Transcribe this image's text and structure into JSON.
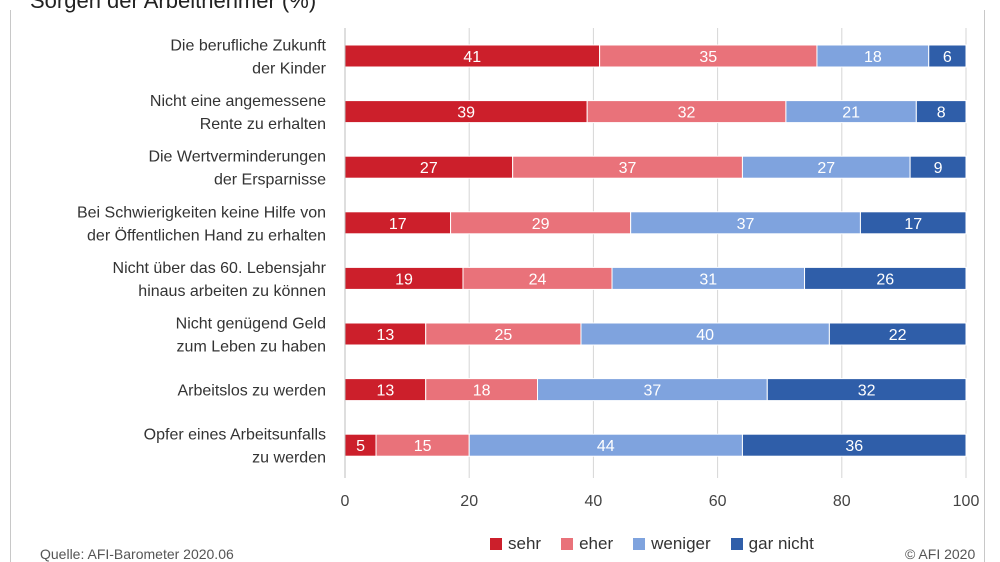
{
  "title": "Sorgen der Arbeitnehmer (%)",
  "source": "Quelle: AFI-Barometer 2020.06",
  "copyright": "© AFI 2020",
  "colors": {
    "sehr": "#cc1f2b",
    "eher": "#e9727a",
    "weniger": "#7fa3de",
    "gar_nicht": "#2f5ea9"
  },
  "chart_data": {
    "type": "bar",
    "orientation": "horizontal",
    "stacked": true,
    "categories": [
      [
        "Die berufliche Zukunft",
        "der Kinder"
      ],
      [
        "Nicht eine angemessene",
        "Rente zu erhalten"
      ],
      [
        "Die Wertverminderungen",
        "der Ersparnisse"
      ],
      [
        "Bei Schwierigkeiten keine Hilfe von",
        "der Öffentlichen Hand zu erhalten"
      ],
      [
        "Nicht über das 60. Lebensjahr",
        "hinaus arbeiten zu können"
      ],
      [
        "Nicht genügend Geld",
        "zum Leben zu haben"
      ],
      [
        "Arbeitslos zu werden"
      ],
      [
        "Opfer eines Arbeitsunfalls",
        "zu werden"
      ]
    ],
    "series": [
      {
        "name": "sehr",
        "values": [
          41,
          39,
          27,
          17,
          19,
          13,
          13,
          5
        ]
      },
      {
        "name": "eher",
        "values": [
          35,
          32,
          37,
          29,
          24,
          25,
          18,
          15
        ]
      },
      {
        "name": "weniger",
        "values": [
          18,
          21,
          27,
          37,
          31,
          40,
          37,
          44
        ]
      },
      {
        "name": "gar nicht",
        "values": [
          6,
          8,
          9,
          17,
          26,
          22,
          32,
          36
        ]
      }
    ],
    "xlim": [
      0,
      100
    ],
    "xticks": [
      "0",
      "20",
      "40",
      "60",
      "80",
      "100"
    ],
    "grid": "vertical",
    "legend": "bottom"
  }
}
